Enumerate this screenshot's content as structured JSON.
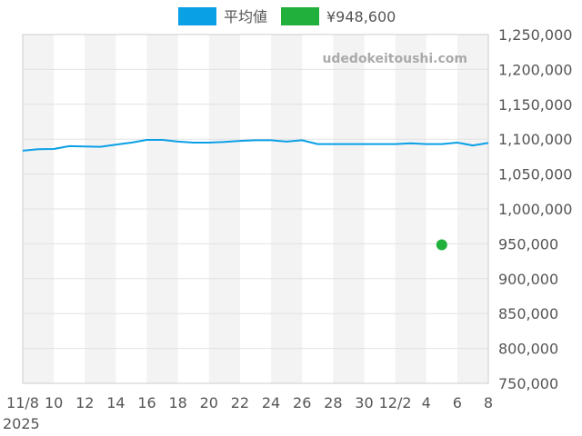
{
  "chart_data": {
    "type": "line",
    "watermark": "udedokeitoushi.com",
    "legend": {
      "placement": "top-center",
      "items": [
        {
          "label": "平均値",
          "color": "#0aa0e6"
        },
        {
          "label": "¥948,600",
          "color": "#22b03c"
        }
      ]
    },
    "x_ticks": [
      "11/8",
      "10",
      "12",
      "14",
      "16",
      "18",
      "20",
      "22",
      "24",
      "26",
      "28",
      "30",
      "12/2",
      "4",
      "6",
      "8"
    ],
    "x_year_label": "2025",
    "y_ticks": [
      "750,000",
      "800,000",
      "850,000",
      "900,000",
      "950,000",
      "1,000,000",
      "1,050,000",
      "1,100,000",
      "1,150,000",
      "1,200,000",
      "1,250,000"
    ],
    "ylim": [
      750000,
      1250000
    ],
    "x_range_days": [
      0,
      30
    ],
    "grid": true,
    "alternating_bands": true,
    "series": [
      {
        "name": "平均値",
        "color": "#0aa0e6",
        "x": [
          0,
          1,
          2,
          3,
          4,
          5,
          6,
          7,
          8,
          9,
          10,
          11,
          12,
          13,
          14,
          15,
          16,
          17,
          18,
          19,
          20,
          21,
          22,
          23,
          24,
          25,
          26,
          27,
          28,
          29,
          30
        ],
        "values": [
          1083500,
          1085500,
          1086000,
          1090000,
          1089500,
          1089000,
          1092000,
          1095000,
          1099000,
          1099000,
          1096500,
          1095000,
          1095000,
          1096000,
          1097500,
          1098500,
          1098500,
          1096500,
          1098500,
          1093000,
          1093000,
          1093000,
          1093000,
          1093000,
          1093000,
          1094000,
          1093000,
          1093000,
          1095000,
          1091000,
          1094500
        ]
      },
      {
        "name": "¥948,600",
        "color": "#22b03c",
        "x": [
          27
        ],
        "values": [
          948600
        ]
      }
    ]
  }
}
